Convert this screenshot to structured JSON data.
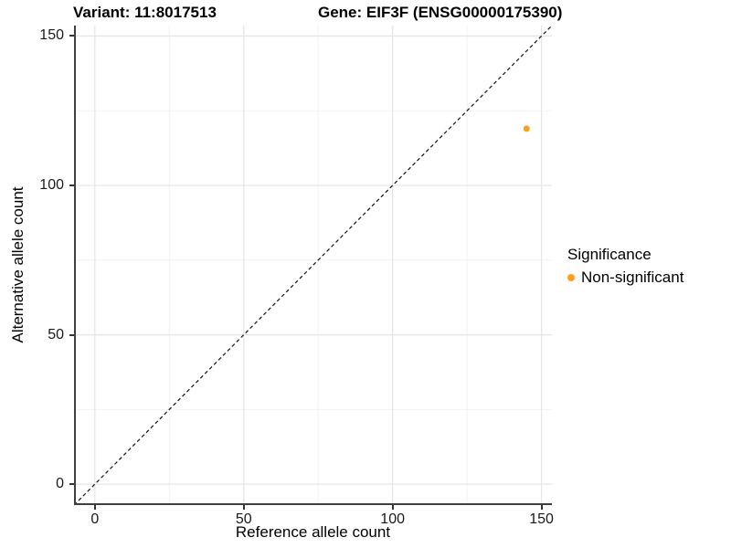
{
  "titles": {
    "variant": "Variant: 11:8017513",
    "gene": "Gene: EIF3F (ENSG00000175390)"
  },
  "chart_data": {
    "type": "scatter",
    "xlabel": "Reference allele count",
    "ylabel": "Alternative allele count",
    "xlim": [
      -7,
      153.5
    ],
    "ylim": [
      -7,
      153.5
    ],
    "x_ticks": [
      0,
      50,
      100,
      150
    ],
    "y_ticks": [
      0,
      50,
      100,
      150
    ],
    "x_minor_ticks": [
      25,
      75,
      125
    ],
    "y_minor_ticks": [
      25,
      75,
      125
    ],
    "grid": "major+minor",
    "identity_line": {
      "type": "abline",
      "slope": 1,
      "intercept": 0,
      "style": "dashed"
    },
    "series": [
      {
        "name": "Non-significant",
        "color": "#F9A11B",
        "points": [
          {
            "x": 145,
            "y": 119
          }
        ]
      }
    ],
    "legend": {
      "title": "Significance",
      "position": "right",
      "entries": [
        {
          "label": "Non-significant",
          "color": "#F9A11B"
        }
      ]
    },
    "colors": {
      "point": "#F9A11B",
      "grid_major": "#E6E6E6",
      "grid_minor": "#F2F2F2",
      "axis_line": "#3F3F3F",
      "identity_line": "#111111",
      "tick": "#333333"
    }
  }
}
